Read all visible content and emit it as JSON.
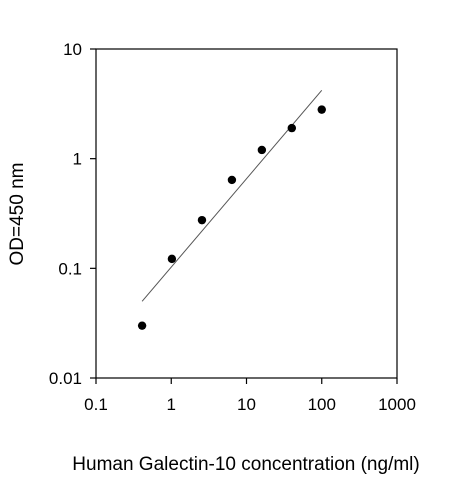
{
  "chart_data": {
    "type": "scatter",
    "title": "",
    "xlabel": "Human Galectin-10 concentration (ng/ml)",
    "ylabel": "OD=450 nm",
    "x_scale": "log",
    "y_scale": "log",
    "xlim": [
      0.1,
      1000
    ],
    "ylim": [
      0.01,
      10
    ],
    "x_ticks": [
      {
        "value": 0.1,
        "label": "0.1"
      },
      {
        "value": 1,
        "label": "1"
      },
      {
        "value": 10,
        "label": "10"
      },
      {
        "value": 100,
        "label": "100"
      },
      {
        "value": 1000,
        "label": "1000"
      }
    ],
    "y_ticks": [
      {
        "value": 0.01,
        "label": "0.01"
      },
      {
        "value": 0.1,
        "label": "0.1"
      },
      {
        "value": 1,
        "label": "1"
      },
      {
        "value": 10,
        "label": "10"
      }
    ],
    "grid": false,
    "legend": "none",
    "series": [
      {
        "points": [
          {
            "x": 0.41,
            "y": 0.03
          },
          {
            "x": 1.02,
            "y": 0.122
          },
          {
            "x": 2.56,
            "y": 0.275
          },
          {
            "x": 6.4,
            "y": 0.64
          },
          {
            "x": 16,
            "y": 1.2
          },
          {
            "x": 40,
            "y": 1.9
          },
          {
            "x": 100,
            "y": 2.8
          }
        ],
        "color": "#000000"
      }
    ],
    "trendline": {
      "x": [
        0.41,
        100
      ],
      "y": [
        0.05,
        4.2
      ],
      "color": "#555555"
    }
  }
}
